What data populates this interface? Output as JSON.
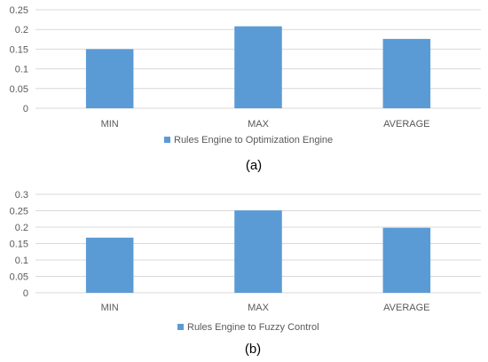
{
  "colors": {
    "bar": "#5b9bd5",
    "grid": "#d9d9d9",
    "axis_text": "#595959"
  },
  "chart_data": [
    {
      "type": "bar",
      "categories": [
        "MIN",
        "MAX",
        "AVERAGE"
      ],
      "series": [
        {
          "name": "Rules Engine to Optimization Engine",
          "values": [
            0.15,
            0.208,
            0.176
          ]
        }
      ],
      "ylim": [
        0,
        0.25
      ],
      "yticks": [
        "0",
        "0.05",
        "0.1",
        "0.15",
        "0.2",
        "0.25"
      ],
      "grid": true,
      "legend": "bottom",
      "caption": "(a)"
    },
    {
      "type": "bar",
      "categories": [
        "MIN",
        "MAX",
        "AVERAGE"
      ],
      "series": [
        {
          "name": "Rules Engine to Fuzzy Control",
          "values": [
            0.168,
            0.251,
            0.198
          ]
        }
      ],
      "ylim": [
        0,
        0.3
      ],
      "yticks": [
        "0",
        "0.05",
        "0.1",
        "0.15",
        "0.2",
        "0.25",
        "0.3"
      ],
      "grid": true,
      "legend": "bottom",
      "caption": "(b)"
    }
  ]
}
